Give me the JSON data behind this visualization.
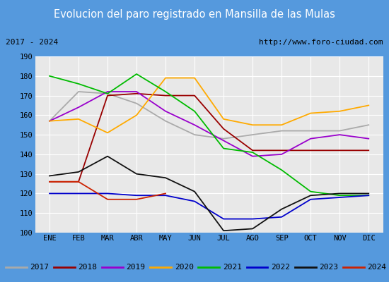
{
  "title": "Evolucion del paro registrado en Mansilla de las Mulas",
  "subtitle_left": "2017 - 2024",
  "subtitle_right": "http://www.foro-ciudad.com",
  "xlabel_months": [
    "ENE",
    "FEB",
    "MAR",
    "ABR",
    "MAY",
    "JUN",
    "JUL",
    "AGO",
    "SEP",
    "OCT",
    "NOV",
    "DIC"
  ],
  "ylim": [
    100,
    190
  ],
  "yticks": [
    100,
    110,
    120,
    130,
    140,
    150,
    160,
    170,
    180,
    190
  ],
  "series": {
    "2017": {
      "color": "#aaaaaa",
      "data": [
        157,
        172,
        171,
        166,
        157,
        150,
        148,
        150,
        152,
        152,
        152,
        155
      ]
    },
    "2018": {
      "color": "#990000",
      "data": [
        126,
        126,
        170,
        171,
        170,
        170,
        153,
        142,
        142,
        142,
        142,
        142
      ]
    },
    "2019": {
      "color": "#9900cc",
      "data": [
        157,
        164,
        172,
        172,
        162,
        155,
        147,
        139,
        140,
        148,
        150,
        148
      ]
    },
    "2020": {
      "color": "#ffaa00",
      "data": [
        157,
        158,
        151,
        160,
        179,
        179,
        158,
        155,
        155,
        161,
        162,
        165
      ]
    },
    "2021": {
      "color": "#00bb00",
      "data": [
        180,
        176,
        171,
        181,
        172,
        162,
        143,
        141,
        132,
        121,
        119,
        119
      ]
    },
    "2022": {
      "color": "#0000cc",
      "data": [
        120,
        120,
        120,
        119,
        119,
        116,
        107,
        107,
        108,
        117,
        118,
        119
      ]
    },
    "2023": {
      "color": "#111111",
      "data": [
        129,
        131,
        139,
        130,
        128,
        121,
        101,
        102,
        112,
        119,
        120,
        120
      ]
    },
    "2024": {
      "color": "#cc2200",
      "data": [
        126,
        126,
        117,
        117,
        120,
        null,
        null,
        null,
        null,
        null,
        null,
        null
      ]
    }
  },
  "title_bg": "#5599dd",
  "title_color": "white",
  "plot_bg": "#e8e8e8",
  "grid_color": "white",
  "legend_bg": "#e8e8e8",
  "legend_border": "#999999"
}
